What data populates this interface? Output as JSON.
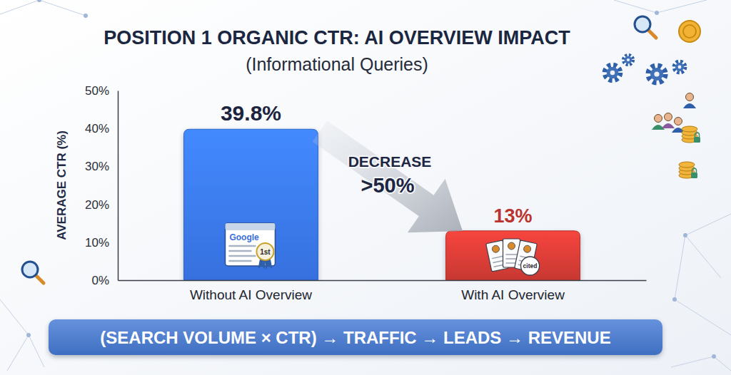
{
  "chart_data": {
    "type": "bar",
    "title": "POSITION 1 ORGANIC CTR: AI OVERVIEW IMPACT",
    "subtitle": "(Informational Queries)",
    "y_label": "AVERAGE CTR (%)",
    "categories": [
      "Without AI Overview",
      "With AI Overview"
    ],
    "values": [
      39.8,
      13
    ],
    "value_labels": [
      "39.8%",
      "13%"
    ],
    "colors": [
      "#3a78ee",
      "#d63c36"
    ],
    "ylim": [
      0,
      50
    ],
    "yticks": [
      {
        "value": 0,
        "label": "0%"
      },
      {
        "value": 10,
        "label": "10%"
      },
      {
        "value": 20,
        "label": "20%"
      },
      {
        "value": 30,
        "label": "30%"
      },
      {
        "value": 40,
        "label": "40%"
      },
      {
        "value": 50,
        "label": "50%"
      }
    ],
    "grid": false,
    "data_labels": true,
    "annotations": [
      "DECREASE",
      ">50%",
      "(SEARCH VOLUME × CTR) → TRAFFIC → LEADS → REVENUE",
      "Google",
      "1st",
      "cited"
    ]
  }
}
